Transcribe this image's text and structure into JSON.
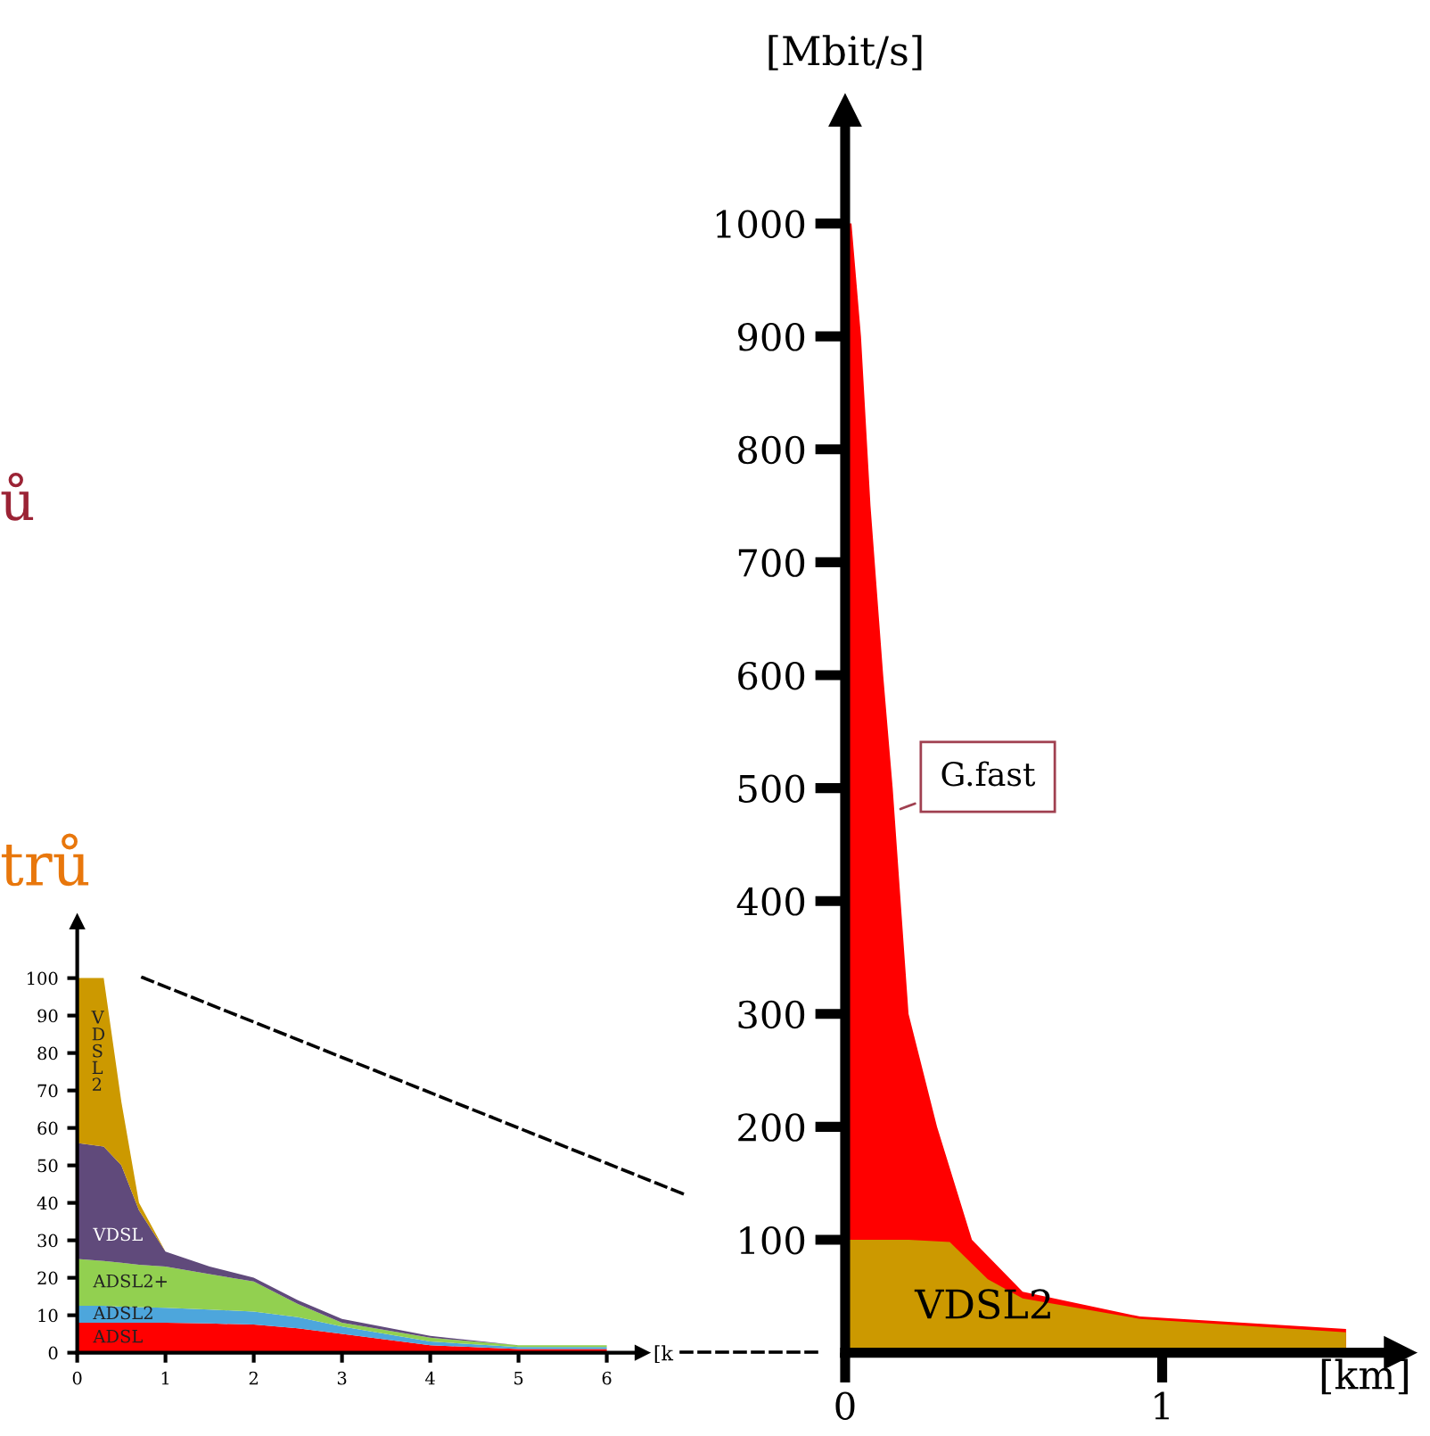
{
  "chart_data": [
    {
      "type": "area",
      "stacked": true,
      "xlabel": "[k",
      "x": [
        0,
        0.3,
        0.5,
        0.7,
        1,
        1.5,
        2,
        2.5,
        3,
        4,
        5,
        6
      ],
      "xlim": [
        0,
        6.4
      ],
      "ylim": [
        0,
        115
      ],
      "xticks": [
        0,
        1,
        2,
        3,
        4,
        5,
        6
      ],
      "yticks": [
        0,
        10,
        20,
        30,
        40,
        50,
        60,
        70,
        80,
        90,
        100
      ],
      "grid": false,
      "legend": false,
      "annotations": [
        "ů",
        "trů"
      ],
      "series": [
        {
          "name": "ADSL",
          "color": "#ff0000",
          "values": [
            8,
            8,
            8,
            8,
            8,
            7.8,
            7.5,
            6.5,
            5,
            2,
            1,
            1
          ]
        },
        {
          "name": "ADSL2",
          "color": "#4da6dc",
          "values": [
            4.5,
            4.5,
            4.3,
            4.2,
            4,
            3.7,
            3.5,
            3,
            2,
            1,
            0.5,
            0.5
          ]
        },
        {
          "name": "ADSL2+",
          "color": "#92d050",
          "values": [
            12.5,
            12,
            11.7,
            11.3,
            11,
            9.5,
            8,
            3.5,
            1,
            1,
            0.5,
            0.5
          ]
        },
        {
          "name": "VDSL",
          "color": "#604a7b",
          "values": [
            31,
            30.5,
            26,
            14.5,
            4,
            2,
            1,
            1,
            1,
            0.5,
            0,
            0
          ]
        },
        {
          "name": "VDSL2",
          "color": "#cc9900",
          "values": [
            44,
            45,
            17,
            2,
            0,
            0,
            0,
            0,
            0,
            0,
            0,
            0
          ]
        }
      ]
    },
    {
      "type": "area",
      "xlabel": "[km]",
      "ylabel": "[Mbit/s]",
      "xlim": [
        0,
        1.75
      ],
      "ylim": [
        0,
        1100
      ],
      "xticks": [
        0,
        1
      ],
      "yticks": [
        100,
        200,
        300,
        400,
        500,
        600,
        700,
        800,
        900,
        1000
      ],
      "grid": false,
      "legend": false,
      "series": [
        {
          "name": "G.fast",
          "color": "#ff0000",
          "x": [
            0,
            0.02,
            0.05,
            0.08,
            0.12,
            0.15,
            0.2,
            0.29,
            0.4,
            0.56,
            0.93,
            1.58
          ],
          "values": [
            1000,
            1000,
            900,
            750,
            600,
            500,
            300,
            200,
            100,
            54,
            32,
            21
          ]
        },
        {
          "name": "VDSL2",
          "color": "#cc9900",
          "x": [
            0,
            0.1,
            0.2,
            0.33,
            0.45,
            0.56,
            0.93,
            1.58
          ],
          "values": [
            100,
            100,
            100,
            98,
            65,
            48,
            30,
            18
          ]
        }
      ]
    }
  ]
}
